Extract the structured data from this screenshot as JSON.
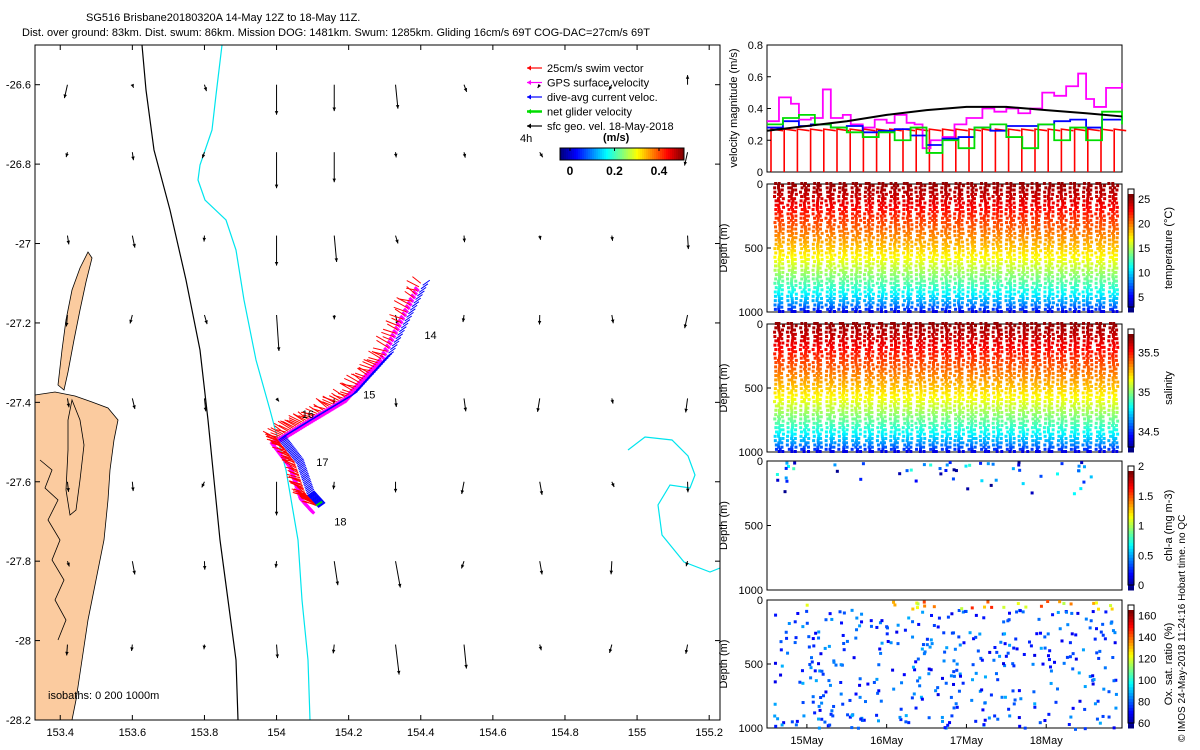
{
  "header": {
    "title_line1": "SG516 Brisbane20180320A 14-May 12Z to 18-May 11Z.",
    "title_line2": "Dist. over ground: 83km. Dist. swum: 86km. Mission DOG: 1481km. Swum: 1285km. Gliding 16cm/s 69T COG-DAC=27cm/s 69T"
  },
  "credit": "© IMOS 24-May-2018 11:24:16 Hobart time. no QC",
  "colors": {
    "land": "#fbcb9f",
    "isobath_200": "#00e5ee",
    "isobath_1000": "#000000",
    "swim_vector": "#ff0000",
    "gps_surface": "#ff00ff",
    "dive_avg": "#0000ff",
    "net_glider": "#00dd00",
    "sfc_geo": "#000000"
  },
  "chart_data": [
    {
      "type": "map",
      "xlim": [
        153.33,
        155.23
      ],
      "ylim": [
        -28.2,
        -26.5
      ],
      "xticks": [
        153.4,
        153.6,
        153.8,
        154,
        154.2,
        154.4,
        154.6,
        154.8,
        155,
        155.2
      ],
      "xtick_labels": [
        "153.4",
        "153.6",
        "153.8",
        "154",
        "154.2",
        "154.4",
        "154.6",
        "154.8",
        "155",
        "155.2"
      ],
      "yticks": [
        -28.2,
        -28,
        -27.8,
        -27.6,
        -27.4,
        -27.2,
        -27,
        -26.8,
        -26.6
      ],
      "ytick_labels": [
        "-28.2",
        "-28",
        "-27.8",
        "-27.6",
        "-27.4",
        "-27.2",
        "-27",
        "-26.8",
        "-26.6"
      ],
      "isobath_label": "isobaths: 0   200  1000m",
      "scale_label": "4h",
      "legend": [
        {
          "label": "25cm/s swim vector",
          "color": "#ff0000"
        },
        {
          "label": "GPS surface velocity",
          "color": "#ff00ff"
        },
        {
          "label": "dive-avg current veloc.",
          "color": "#0000ff"
        },
        {
          "label": "net glider velocity",
          "color": "#00dd00"
        },
        {
          "label": "sfc geo. vel. 18-May-2018",
          "color": "#000000"
        }
      ],
      "colorbar": {
        "title": "(m/s)",
        "range": [
          0,
          0.5
        ],
        "ticks": [
          "0",
          "0.2",
          "0.4"
        ]
      },
      "day_labels": [
        {
          "text": "14",
          "lon": 154.41,
          "lat": -27.24
        },
        {
          "text": "15",
          "lon": 154.24,
          "lat": -27.39
        },
        {
          "text": "16",
          "lon": 154.07,
          "lat": -27.44
        },
        {
          "text": "17",
          "lon": 154.11,
          "lat": -27.56
        },
        {
          "text": "18",
          "lon": 154.16,
          "lat": -27.71
        }
      ],
      "track": [
        [
          154.4,
          -27.1
        ],
        [
          154.3,
          -27.28
        ],
        [
          154.2,
          -27.38
        ],
        [
          154.09,
          -27.44
        ],
        [
          154.0,
          -27.49
        ],
        [
          154.05,
          -27.55
        ],
        [
          154.08,
          -27.63
        ],
        [
          154.11,
          -27.66
        ]
      ],
      "geo_vectors": {
        "lons": [
          153.42,
          153.6,
          153.8,
          154.0,
          154.16,
          154.33,
          154.52,
          154.73,
          154.93,
          155.14
        ],
        "lats": [
          -26.6,
          -26.77,
          -26.98,
          -27.18,
          -27.39,
          -27.6,
          -27.8,
          -28.01
        ],
        "samples": [
          {
            "lon": 154.0,
            "lat": -26.6,
            "u": 0.0,
            "v": -0.25
          },
          {
            "lon": 154.16,
            "lat": -26.6,
            "u": 0.0,
            "v": -0.22
          },
          {
            "lon": 154.33,
            "lat": -26.6,
            "u": 0.02,
            "v": -0.2
          },
          {
            "lon": 154.0,
            "lat": -26.77,
            "u": 0.0,
            "v": -0.3
          },
          {
            "lon": 154.16,
            "lat": -26.77,
            "u": 0.0,
            "v": -0.25
          },
          {
            "lon": 154.0,
            "lat": -26.98,
            "u": 0.0,
            "v": -0.25
          },
          {
            "lon": 154.16,
            "lat": -26.98,
            "u": 0.02,
            "v": -0.22
          },
          {
            "lon": 154.0,
            "lat": -27.18,
            "u": 0.02,
            "v": -0.3
          },
          {
            "lon": 154.0,
            "lat": -27.6,
            "u": 0.0,
            "v": -0.28
          },
          {
            "lon": 154.16,
            "lat": -27.8,
            "u": 0.03,
            "v": -0.2
          },
          {
            "lon": 154.33,
            "lat": -27.8,
            "u": 0.04,
            "v": -0.22
          },
          {
            "lon": 154.33,
            "lat": -28.01,
            "u": 0.03,
            "v": -0.25
          },
          {
            "lon": 154.52,
            "lat": -28.01,
            "u": 0.02,
            "v": -0.2
          },
          {
            "lon": 155.14,
            "lat": -26.6,
            "u": 0.0,
            "v": 0.08
          }
        ]
      }
    },
    {
      "type": "line",
      "ylabel": "velocity magnitude (m/s)",
      "ylim": [
        0,
        0.8
      ],
      "yticks": [
        0,
        0.2,
        0.4,
        0.6,
        0.8
      ],
      "ytick_labels": [
        "0",
        "0.2",
        "0.4",
        "0.6",
        "0.8"
      ],
      "xlim": [
        14.5,
        18.95
      ],
      "series": [
        {
          "color": "#ff00ff",
          "x": [
            14.5,
            14.6,
            14.65,
            14.8,
            14.9,
            15.05,
            15.2,
            15.3,
            15.45,
            15.55,
            15.7,
            15.85,
            16.0,
            16.1,
            16.25,
            16.35,
            16.45,
            16.55,
            16.7,
            16.85,
            17.0,
            17.2,
            17.35,
            17.5,
            17.65,
            17.8,
            17.95,
            18.1,
            18.25,
            18.4,
            18.5,
            18.6,
            18.75,
            18.95
          ],
          "y": [
            0.32,
            0.32,
            0.47,
            0.43,
            0.33,
            0.34,
            0.52,
            0.34,
            0.36,
            0.3,
            0.28,
            0.33,
            0.31,
            0.36,
            0.31,
            0.3,
            0.15,
            0.2,
            0.22,
            0.3,
            0.34,
            0.4,
            0.38,
            0.4,
            0.37,
            0.4,
            0.5,
            0.48,
            0.54,
            0.62,
            0.46,
            0.41,
            0.53,
            0.56
          ]
        },
        {
          "color": "#0000ff",
          "x": [
            14.5,
            14.7,
            14.9,
            15.05,
            15.3,
            15.5,
            15.7,
            15.9,
            16.1,
            16.3,
            16.5,
            16.7,
            16.9,
            17.1,
            17.3,
            17.5,
            17.7,
            17.9,
            18.1,
            18.3,
            18.5,
            18.7,
            18.95
          ],
          "y": [
            0.28,
            0.32,
            0.29,
            0.3,
            0.28,
            0.29,
            0.25,
            0.26,
            0.27,
            0.23,
            0.17,
            0.21,
            0.22,
            0.28,
            0.26,
            0.29,
            0.29,
            0.3,
            0.32,
            0.33,
            0.28,
            0.33,
            0.35
          ]
        },
        {
          "color": "#00dd00",
          "x": [
            14.5,
            14.7,
            14.9,
            15.1,
            15.3,
            15.5,
            15.7,
            15.9,
            16.1,
            16.3,
            16.5,
            16.7,
            16.9,
            17.1,
            17.3,
            17.5,
            17.7,
            17.9,
            18.1,
            18.3,
            18.5,
            18.7,
            18.95
          ],
          "y": [
            0.3,
            0.34,
            0.36,
            0.3,
            0.28,
            0.25,
            0.22,
            0.25,
            0.2,
            0.28,
            0.12,
            0.2,
            0.15,
            0.28,
            0.3,
            0.22,
            0.15,
            0.3,
            0.2,
            0.28,
            0.2,
            0.38,
            0.3
          ]
        },
        {
          "color": "#000000",
          "x": [
            14.5,
            15.0,
            15.5,
            16.0,
            16.5,
            17.0,
            17.5,
            18.0,
            18.5,
            18.95
          ],
          "y": [
            0.26,
            0.29,
            0.32,
            0.36,
            0.39,
            0.41,
            0.41,
            0.39,
            0.37,
            0.35
          ]
        }
      ]
    },
    {
      "type": "scatter",
      "ylabel": "Depth (m)",
      "ylim": [
        1000,
        0
      ],
      "yticks": [
        0,
        500,
        1000
      ],
      "ytick_labels": [
        "0",
        "500",
        "1000"
      ],
      "cbar_label": "temperature (°C)",
      "cbar_ticks": [
        "5",
        "10",
        "15",
        "20",
        "25"
      ],
      "cbar_range": [
        3,
        27
      ],
      "profiles": 27
    },
    {
      "type": "scatter",
      "ylabel": "Depth (m)",
      "ylim": [
        1000,
        0
      ],
      "yticks": [
        0,
        500,
        1000
      ],
      "ytick_labels": [
        "0",
        "500",
        "1000"
      ],
      "cbar_label": "salinity",
      "cbar_ticks": [
        "34.5",
        "35",
        "35.5"
      ],
      "cbar_range": [
        34.3,
        35.8
      ],
      "profiles": 27
    },
    {
      "type": "scatter",
      "ylabel": "Depth (m)",
      "ylim": [
        1000,
        0
      ],
      "yticks": [
        0,
        500,
        1000
      ],
      "ytick_labels": [
        "0",
        "500",
        "1000"
      ],
      "cbar_label": "chl-a (mg m-3)",
      "cbar_ticks": [
        "0",
        "0.5",
        "1",
        "1.5",
        "2"
      ],
      "cbar_range": [
        0,
        2
      ]
    },
    {
      "type": "scatter",
      "ylabel": "Depth (m)",
      "ylim": [
        1000,
        0
      ],
      "yticks": [
        0,
        500,
        1000
      ],
      "ytick_labels": [
        "0",
        "500",
        "1000"
      ],
      "cbar_label": "Ox. sat. ratio (%)",
      "cbar_ticks": [
        "60",
        "80",
        "100",
        "120",
        "140",
        "160"
      ],
      "cbar_range": [
        60,
        170
      ],
      "xticks": [
        15,
        16,
        17,
        18
      ],
      "xtick_labels": [
        "15May",
        "16May",
        "17May",
        "18May"
      ]
    }
  ]
}
